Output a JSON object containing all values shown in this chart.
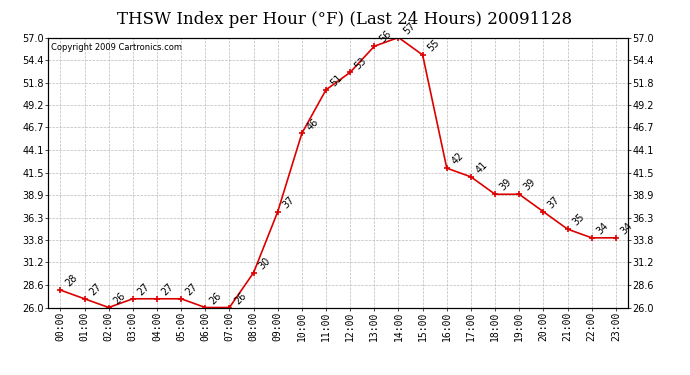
{
  "title": "THSW Index per Hour (°F) (Last 24 Hours) 20091128",
  "copyright": "Copyright 2009 Cartronics.com",
  "hours": [
    "00:00",
    "01:00",
    "02:00",
    "03:00",
    "04:00",
    "05:00",
    "06:00",
    "07:00",
    "08:00",
    "09:00",
    "10:00",
    "11:00",
    "12:00",
    "13:00",
    "14:00",
    "15:00",
    "16:00",
    "17:00",
    "18:00",
    "19:00",
    "20:00",
    "21:00",
    "22:00",
    "23:00"
  ],
  "values": [
    28,
    27,
    26,
    27,
    27,
    27,
    26,
    26,
    30,
    37,
    46,
    51,
    53,
    56,
    57,
    55,
    42,
    41,
    39,
    39,
    37,
    35,
    34,
    34
  ],
  "ylim_min": 26.0,
  "ylim_max": 57.0,
  "yticks": [
    26.0,
    28.6,
    31.2,
    33.8,
    36.3,
    38.9,
    41.5,
    44.1,
    46.7,
    49.2,
    51.8,
    54.4,
    57.0
  ],
  "ytick_labels": [
    "26.0",
    "28.6",
    "31.2",
    "33.8",
    "36.3",
    "38.9",
    "41.5",
    "44.1",
    "46.7",
    "49.2",
    "51.8",
    "54.4",
    "57.0"
  ],
  "line_color": "#dd0000",
  "marker_color": "#dd0000",
  "bg_color": "#ffffff",
  "grid_color": "#bbbbbb",
  "title_fontsize": 12,
  "label_fontsize": 7,
  "annot_fontsize": 7
}
